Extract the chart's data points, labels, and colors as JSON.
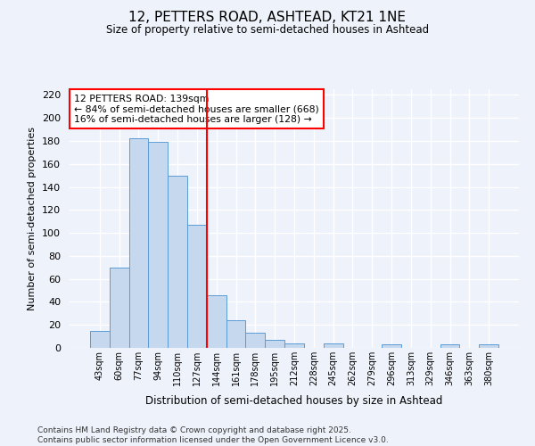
{
  "title": "12, PETTERS ROAD, ASHTEAD, KT21 1NE",
  "subtitle": "Size of property relative to semi-detached houses in Ashtead",
  "xlabel": "Distribution of semi-detached houses by size in Ashtead",
  "ylabel": "Number of semi-detached properties",
  "bin_labels": [
    "43sqm",
    "60sqm",
    "77sqm",
    "94sqm",
    "110sqm",
    "127sqm",
    "144sqm",
    "161sqm",
    "178sqm",
    "195sqm",
    "212sqm",
    "228sqm",
    "245sqm",
    "262sqm",
    "279sqm",
    "296sqm",
    "313sqm",
    "329sqm",
    "346sqm",
    "363sqm",
    "380sqm"
  ],
  "bin_values": [
    15,
    70,
    182,
    179,
    150,
    107,
    46,
    24,
    13,
    7,
    4,
    0,
    4,
    0,
    0,
    3,
    0,
    0,
    3,
    0,
    3
  ],
  "bar_color": "#c5d8ee",
  "bar_edge_color": "#5b9bd5",
  "vline_x_index": 5.5,
  "vline_color": "red",
  "annotation_text": "12 PETTERS ROAD: 139sqm\n← 84% of semi-detached houses are smaller (668)\n16% of semi-detached houses are larger (128) →",
  "annotation_box_color": "white",
  "annotation_box_edge": "red",
  "ylim": [
    0,
    225
  ],
  "yticks": [
    0,
    20,
    40,
    60,
    80,
    100,
    120,
    140,
    160,
    180,
    200,
    220
  ],
  "footer": "Contains HM Land Registry data © Crown copyright and database right 2025.\nContains public sector information licensed under the Open Government Licence v3.0.",
  "background_color": "#eef2fa",
  "grid_color": "white"
}
